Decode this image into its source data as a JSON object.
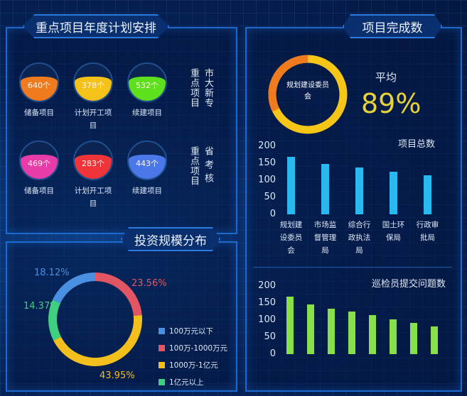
{
  "annual_plan": {
    "title": "重点项目年度计划安排",
    "groups": [
      {
        "side_label_a": "重点项目",
        "side_label_b": "市大新专",
        "items": [
          {
            "value": "640个",
            "label": "储备项目",
            "color": "#f07a1e"
          },
          {
            "value": "378个",
            "label": "计划开工项目",
            "color": "#f5c21a"
          },
          {
            "value": "532个",
            "label": "续建项目",
            "color": "#5ee01e"
          }
        ]
      },
      {
        "side_label_a": "重点项目",
        "side_label_b": "省考核",
        "items": [
          {
            "value": "469个",
            "label": "储备项目",
            "color": "#e83ca8"
          },
          {
            "value": "283个",
            "label": "计划开工项目",
            "color": "#f0343a"
          },
          {
            "value": "443个",
            "label": "续建项目",
            "color": "#4a78e8"
          }
        ]
      }
    ]
  },
  "investment": {
    "title": "投资规模分布"
  },
  "completion": {
    "title": "项目完成数",
    "gauge_label": "规划建设委员会",
    "avg_label": "平均",
    "avg_value": "89%",
    "avg_fraction": 0.89
  },
  "chart_data": [
    {
      "type": "pie",
      "series": [
        {
          "name": "100万-1000万元",
          "value": 23.56,
          "label": "23.56%",
          "color": "#e25563"
        },
        {
          "name": "1000万-1亿元",
          "value": 43.95,
          "label": "43.95%",
          "color": "#f2bf1d"
        },
        {
          "name": "1亿元以上",
          "value": 14.37,
          "label": "14.37%",
          "color": "#3ed07e"
        },
        {
          "name": "100万元以下",
          "value": 18.12,
          "label": "18.12%",
          "color": "#4a90e2"
        }
      ],
      "legend": [
        "100万元以下",
        "100万-1000万元",
        "1000万-1亿元",
        "1亿元以上"
      ],
      "legend_position": "bottom-right"
    },
    {
      "type": "bar",
      "title": "项目总数",
      "categories": [
        "规划建设委员会",
        "市场监督管理局",
        "综合行政执法局",
        "国土环保局",
        "行政审批局"
      ],
      "values": [
        169,
        148,
        138,
        125,
        115
      ],
      "ylim": [
        0,
        200
      ],
      "yticks": [
        "200",
        "150",
        "100",
        "50",
        "0"
      ],
      "color": "#2bb8f0"
    },
    {
      "type": "bar",
      "title": "巡检员提交问题数",
      "categories": [
        "",
        "",
        "",
        "",
        "",
        "",
        "",
        ""
      ],
      "values": [
        169,
        146,
        134,
        124,
        115,
        103,
        91,
        82
      ],
      "ylim": [
        0,
        200
      ],
      "yticks": [
        "200",
        "150",
        "100",
        "50",
        "0"
      ],
      "color": "#86e04a"
    }
  ]
}
